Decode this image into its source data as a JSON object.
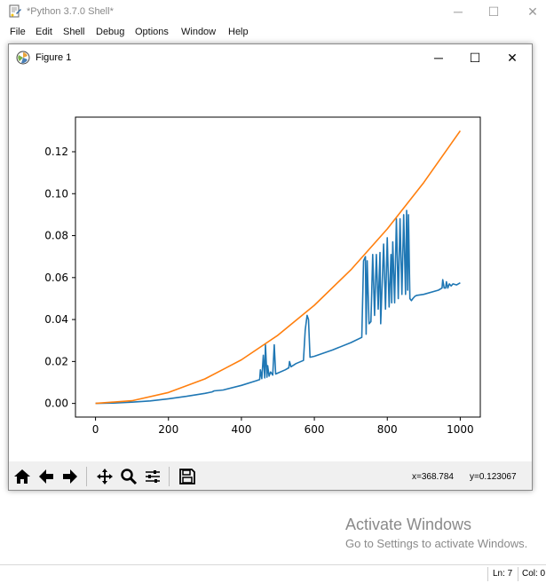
{
  "shell": {
    "title": "*Python 3.7.0 Shell*",
    "menu": [
      "File",
      "Edit",
      "Shell",
      "Debug",
      "Options",
      "Window",
      "Help"
    ]
  },
  "figure": {
    "title": "Figure 1"
  },
  "chart_data": {
    "type": "line",
    "title": "",
    "xlabel": "",
    "ylabel": "",
    "xlim": [
      -55,
      1055
    ],
    "ylim": [
      -0.0065,
      0.1365
    ],
    "xticks": [
      0,
      200,
      400,
      600,
      800,
      1000
    ],
    "yticks": [
      0.0,
      0.02,
      0.04,
      0.06,
      0.08,
      0.1,
      0.12
    ],
    "xtick_labels": [
      "0",
      "200",
      "400",
      "600",
      "800",
      "1000"
    ],
    "ytick_labels": [
      "0.00",
      "0.02",
      "0.04",
      "0.06",
      "0.08",
      "0.10",
      "0.12"
    ],
    "grid": false,
    "legend": "none",
    "series": [
      {
        "color": "#1f77b4",
        "x": [
          0,
          50,
          100,
          150,
          200,
          250,
          300,
          320,
          325,
          350,
          400,
          440,
          450,
          452,
          456,
          460,
          464,
          466,
          470,
          472,
          476,
          480,
          486,
          490,
          494,
          500,
          520,
          530,
          532,
          536,
          550,
          570,
          575,
          580,
          584,
          588,
          600,
          650,
          700,
          730,
          735,
          740,
          742,
          745,
          750,
          755,
          760,
          765,
          770,
          775,
          780,
          782,
          790,
          795,
          800,
          805,
          810,
          812,
          815,
          820,
          825,
          830,
          835,
          840,
          845,
          850,
          853,
          856,
          858,
          862,
          866,
          870,
          875,
          880,
          900,
          940,
          950,
          952,
          956,
          960,
          962,
          966,
          970,
          975,
          980,
          990,
          1000
        ],
        "values": [
          0.0,
          0.0002,
          0.0006,
          0.0012,
          0.0022,
          0.0034,
          0.0048,
          0.0055,
          0.006,
          0.0064,
          0.0086,
          0.0108,
          0.0114,
          0.016,
          0.0118,
          0.023,
          0.0122,
          0.028,
          0.0125,
          0.018,
          0.013,
          0.015,
          0.0135,
          0.028,
          0.014,
          0.0145,
          0.016,
          0.017,
          0.02,
          0.0175,
          0.019,
          0.0205,
          0.035,
          0.042,
          0.04,
          0.022,
          0.0225,
          0.0255,
          0.029,
          0.0315,
          0.068,
          0.07,
          0.033,
          0.068,
          0.038,
          0.039,
          0.071,
          0.042,
          0.071,
          0.045,
          0.072,
          0.038,
          0.076,
          0.045,
          0.079,
          0.046,
          0.071,
          0.048,
          0.077,
          0.048,
          0.088,
          0.05,
          0.088,
          0.052,
          0.09,
          0.052,
          0.092,
          0.054,
          0.09,
          0.05,
          0.049,
          0.05,
          0.051,
          0.0515,
          0.052,
          0.054,
          0.055,
          0.059,
          0.055,
          0.055,
          0.058,
          0.055,
          0.057,
          0.056,
          0.057,
          0.0565,
          0.0575
        ]
      },
      {
        "color": "#ff7f0e",
        "x": [
          0,
          100,
          200,
          300,
          400,
          500,
          600,
          700,
          800,
          900,
          1000
        ],
        "values": [
          0.0,
          0.0013,
          0.0052,
          0.0117,
          0.0208,
          0.0325,
          0.0468,
          0.0637,
          0.0832,
          0.1053,
          0.13
        ]
      }
    ]
  },
  "toolbar": {
    "icons": [
      "home-icon",
      "back-arrow-icon",
      "forward-arrow-icon",
      "pan-icon",
      "zoom-icon",
      "configure-subplots-icon",
      "save-icon"
    ],
    "x_coord": "x=368.784",
    "y_coord": "y=0.123067"
  },
  "watermark": {
    "line1": "Activate Windows",
    "line2": "Go to Settings to activate Windows."
  },
  "status": {
    "ln": "Ln: 7",
    "col": "Col: 0"
  }
}
